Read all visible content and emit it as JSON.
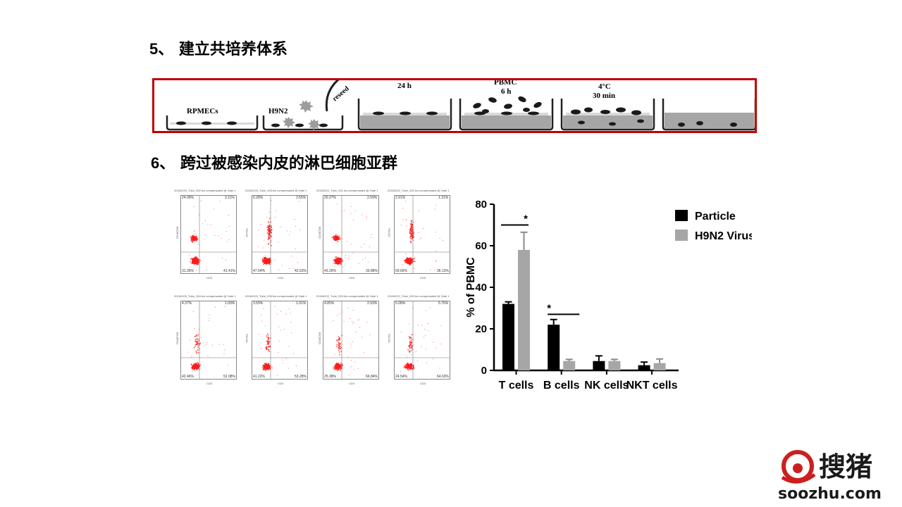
{
  "headings": {
    "h5_num": "5",
    "h5_text": "、 建立共培养体系",
    "h6_num": "6",
    "h6_text": "、 跨过被感染内皮的淋巴细胞亚群"
  },
  "schematic": {
    "labels": {
      "rpmecs": "RPMECs",
      "h9n2": "H9N2",
      "reseed": "reseed",
      "t24": "24 h",
      "pbmc": "PBMC",
      "t6": "6 h",
      "temp": "4°C",
      "t30": "30 min"
    },
    "colors": {
      "border": "#c00000",
      "fill": "#a6a6a6",
      "cell": "#1a1a1a"
    }
  },
  "flow_panels": [
    {
      "header": "20160125_Tube_002.fcs compensated @ Gate 1",
      "ul": "24.09%",
      "ur": "3.11%",
      "ll": "31.39%",
      "lr": "41.41%",
      "yaxis": "CD4/CD8",
      "xaxis": "CD3"
    },
    {
      "header": "20160125_Tube_003.fcs compensated @ Gate 1",
      "ul": "6.28%",
      "ur": "3.55%",
      "ll": "47.54%",
      "lr": "42.63%",
      "yaxis": "CD79a",
      "xaxis": "CD3"
    },
    {
      "header": "20160222_Tube_001.fcs compensated @ Gate 1",
      "ul": "20.27%",
      "ur": "2.59%",
      "ll": "43.26%",
      "lr": "33.88%",
      "yaxis": "CD4/CD8",
      "xaxis": "CD3"
    },
    {
      "header": "20160222_Tube_001.fcs compensated @ Gate 1",
      "ul": "2.91%",
      "ur": "1.31%",
      "ll": "59.66%",
      "lr": "36.13%",
      "yaxis": "CD79a",
      "xaxis": "CD3"
    },
    {
      "header": "20160125_Tube_004.fcs compensated @ Gate 1",
      "ul": "4.37%",
      "ur": "1.09%",
      "ll": "42.46%",
      "lr": "52.08%",
      "yaxis": "CD4/CD8",
      "xaxis": "CD3"
    },
    {
      "header": "20160125_Tube_005.fcs compensated @ Gate 1",
      "ul": "3.59%",
      "ur": "1.91%",
      "ll": "41.22%",
      "lr": "53.28%",
      "yaxis": "CD79a",
      "xaxis": "CD3"
    },
    {
      "header": "20160222_Tube_003.fcs compensated @ Gate 1",
      "ul": "4.85%",
      "ur": "2.93%",
      "ll": "25.38%",
      "lr": "66.84%",
      "yaxis": "CD4/CD8",
      "xaxis": "CD3"
    },
    {
      "header": "20160222_Tube_003.fcs compensated @ Gate 1",
      "ul": "5.08%",
      "ur": "5.76%",
      "ll": "24.54%",
      "lr": "64.63%",
      "yaxis": "CD79a",
      "xaxis": "CD3"
    }
  ],
  "chart_data": {
    "type": "bar",
    "categories": [
      "T cells",
      "B cells",
      "NK cells",
      "NKT cells"
    ],
    "series": [
      {
        "name": "Particle",
        "values": [
          32,
          22,
          4.5,
          2.5
        ],
        "errors": [
          1,
          2.5,
          2.5,
          1.5
        ],
        "color": "#000000"
      },
      {
        "name": "H9N2 Virus",
        "values": [
          58,
          4.5,
          4.5,
          3.5
        ],
        "errors": [
          8.5,
          0.8,
          0.8,
          2.0
        ],
        "color": "#a6a6a6"
      }
    ],
    "ylabel": "% of PBMC",
    "ylim": [
      0,
      80
    ],
    "yticks": [
      0,
      20,
      40,
      60,
      80
    ],
    "significance": [
      {
        "category": "T cells",
        "label": "*"
      },
      {
        "category": "B cells",
        "label": "*"
      }
    ],
    "legend_position": "top-right",
    "grid": false
  },
  "logo": {
    "brand_cn": "搜猪",
    "url_text": "soozhu.com",
    "color": "#cc1f1f"
  }
}
